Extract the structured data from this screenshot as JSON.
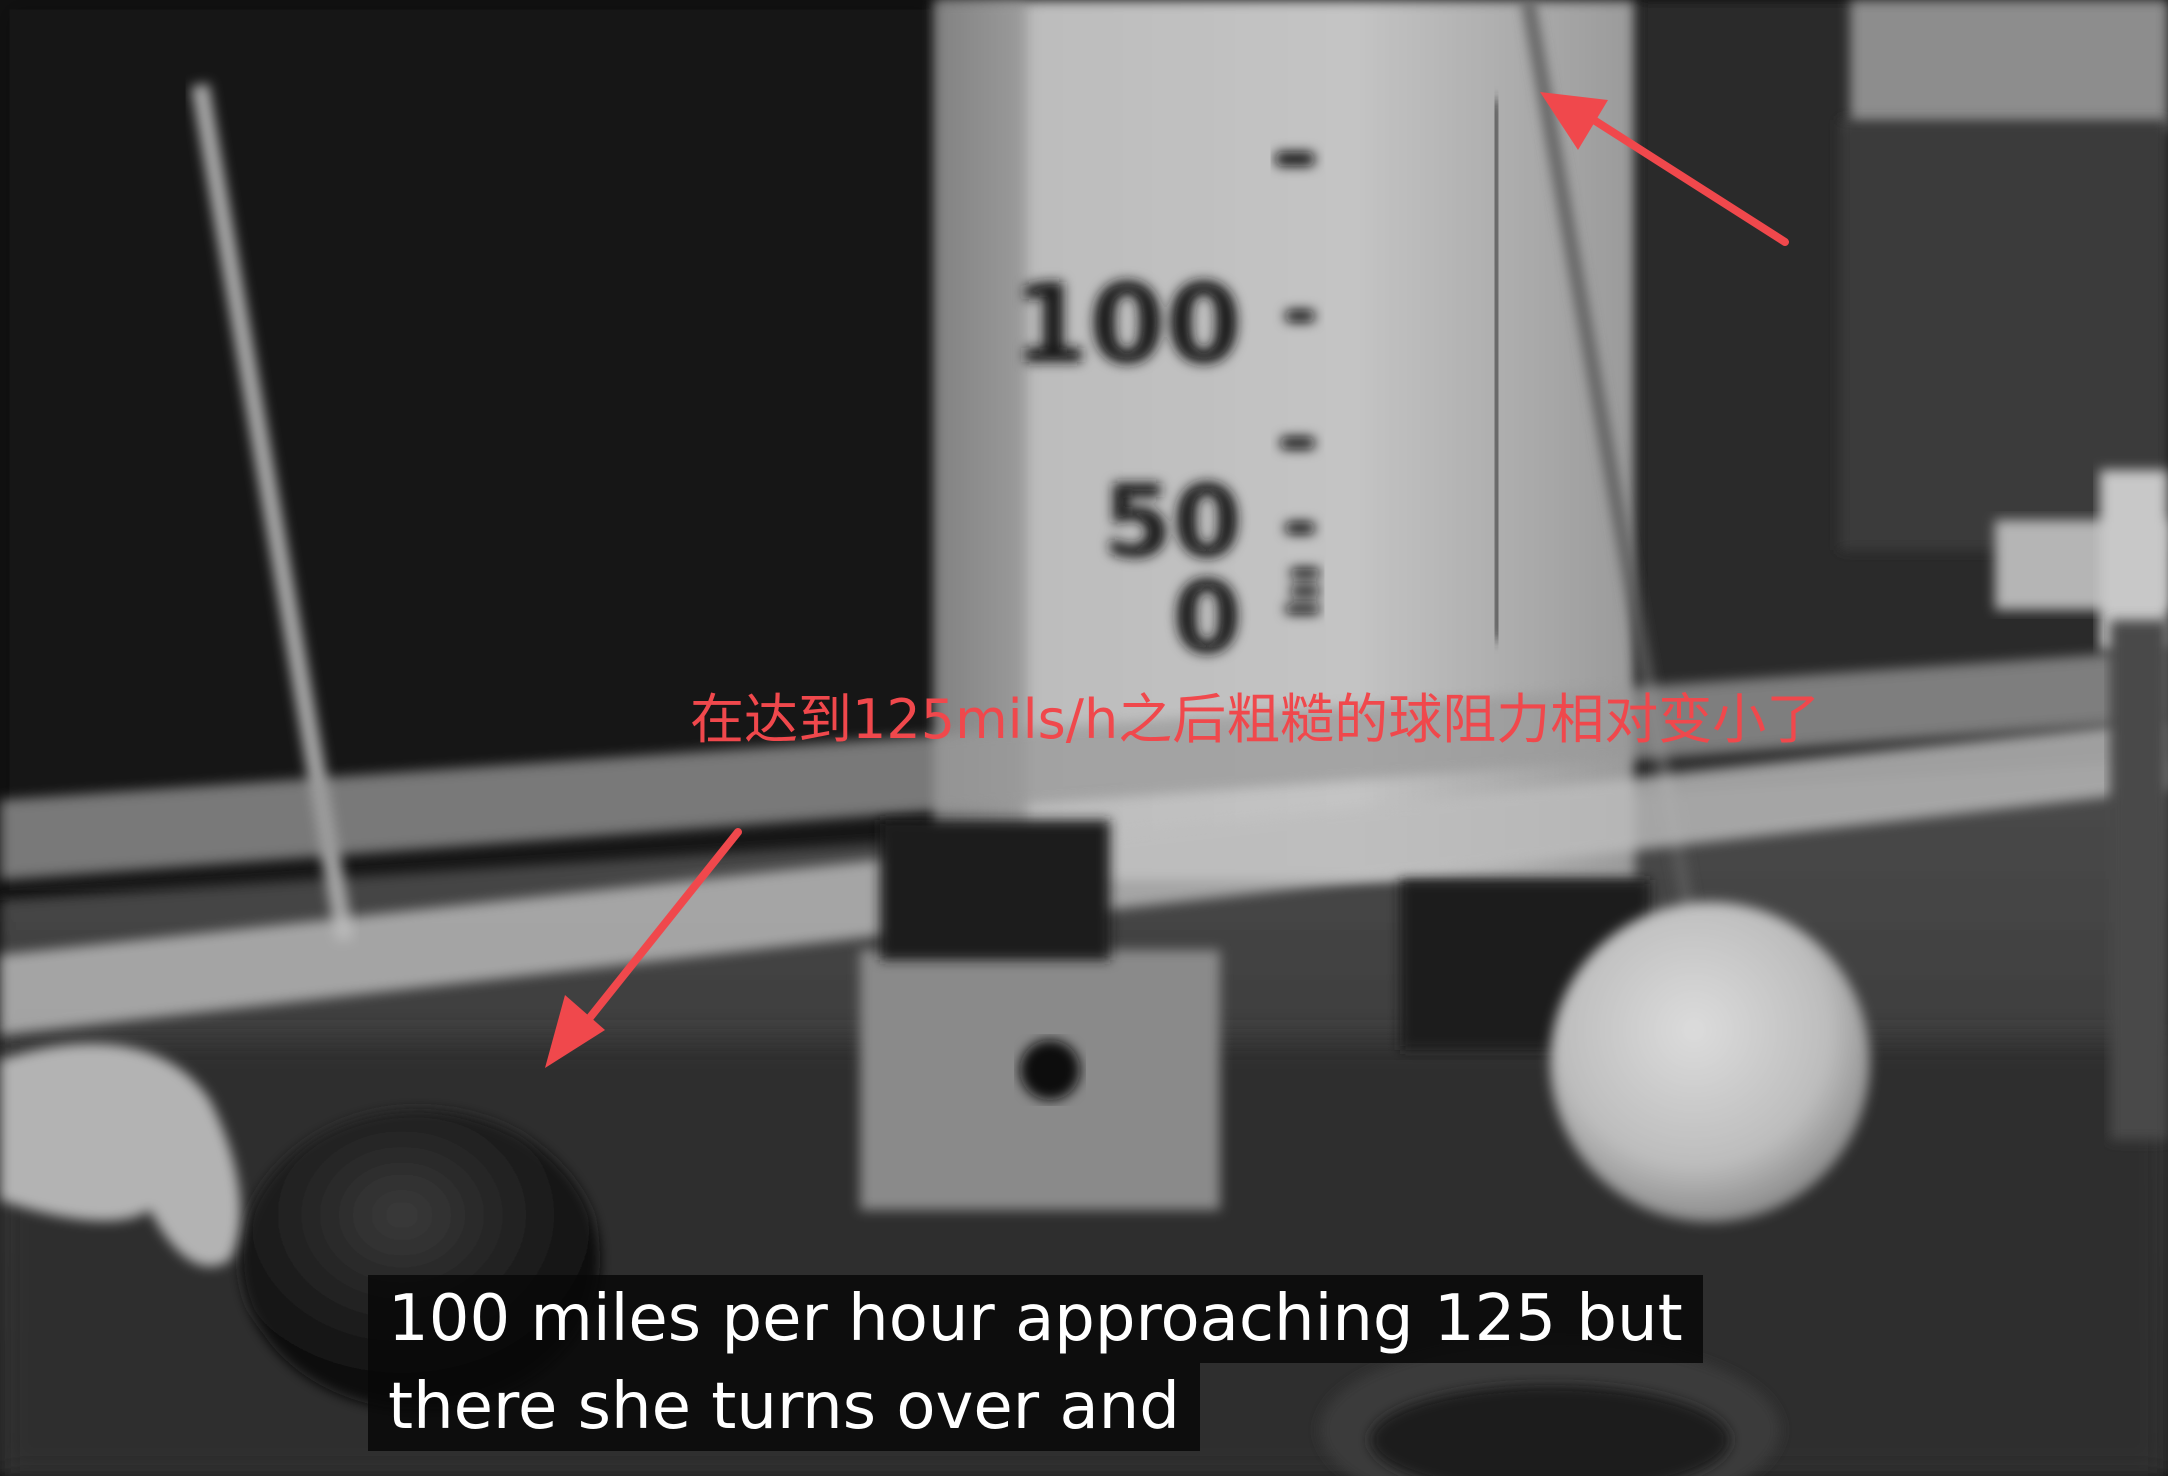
{
  "scale": {
    "labels": [
      "100",
      "50",
      "0"
    ]
  },
  "annotation": {
    "text": "在达到125mils/h之后粗糙的球阻力相对变小了",
    "color": "#f0484c"
  },
  "captions": {
    "line1": "100 miles per hour approaching 125 but",
    "line2": "there she turns over and"
  },
  "colors": {
    "arrow": "#f0484c",
    "caption_bg": "#080808",
    "caption_text": "#ffffff"
  }
}
